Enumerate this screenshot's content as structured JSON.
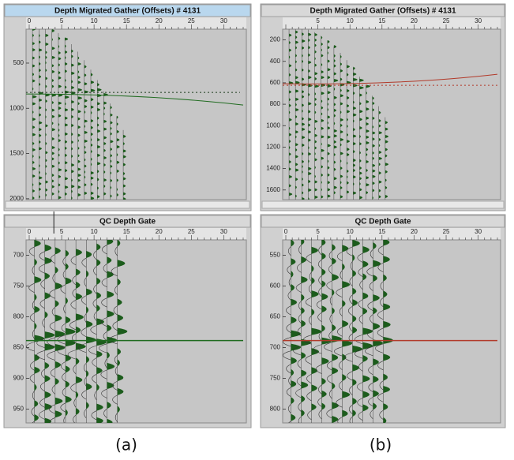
{
  "panels": [
    {
      "title": "Depth Migrated Gather (Offsets) # 4131",
      "x_ticks": [
        "0",
        "5",
        "10",
        "15",
        "20",
        "25",
        "30"
      ],
      "y_ticks": [
        "500",
        "1000",
        "1500",
        "2000"
      ]
    },
    {
      "title": "Depth Migrated Gather (Offsets) # 4131",
      "x_ticks": [
        "5",
        "10",
        "15",
        "20",
        "25",
        "30"
      ],
      "y_ticks": [
        "200",
        "400",
        "600",
        "800",
        "1000",
        "1200",
        "1400",
        "1600"
      ]
    },
    {
      "title": "QC Depth Gate",
      "x_ticks": [
        "0",
        "5",
        "10",
        "15",
        "20",
        "25",
        "30"
      ],
      "y_ticks": [
        "700",
        "750",
        "800",
        "850",
        "900",
        "950"
      ]
    },
    {
      "title": "QC Depth Gate",
      "x_ticks": [
        "0",
        "5",
        "10",
        "15",
        "20",
        "25",
        "30"
      ],
      "y_ticks": [
        "550",
        "600",
        "650",
        "700",
        "750",
        "800"
      ]
    }
  ],
  "captions": [
    "(a)",
    "(b)"
  ]
}
